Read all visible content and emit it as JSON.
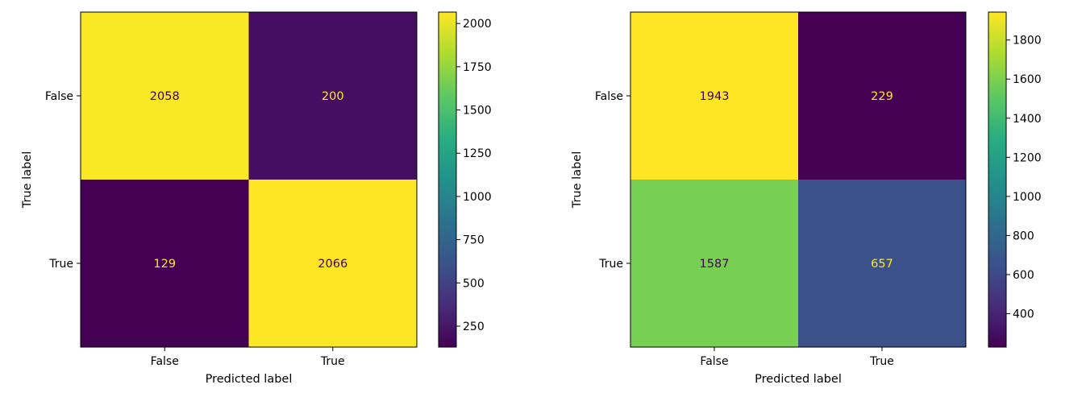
{
  "chart_data": [
    {
      "type": "heatmap",
      "title": "",
      "xlabel": "Predicted label",
      "ylabel": "True label",
      "x_categories": [
        "False",
        "True"
      ],
      "y_categories": [
        "False",
        "True"
      ],
      "values": [
        [
          2058,
          200
        ],
        [
          129,
          2066
        ]
      ],
      "colormap": "viridis",
      "colorbar": {
        "min": 129,
        "max": 2066,
        "ticks": [
          250,
          500,
          750,
          1000,
          1250,
          1500,
          1750,
          2000
        ]
      },
      "grid": false
    },
    {
      "type": "heatmap",
      "title": "",
      "xlabel": "Predicted label",
      "ylabel": "True label",
      "x_categories": [
        "False",
        "True"
      ],
      "y_categories": [
        "False",
        "True"
      ],
      "values": [
        [
          1943,
          229
        ],
        [
          1587,
          657
        ]
      ],
      "colormap": "viridis",
      "colorbar": {
        "min": 229,
        "max": 1943,
        "ticks": [
          400,
          600,
          800,
          1000,
          1200,
          1400,
          1600,
          1800
        ]
      },
      "grid": false
    }
  ]
}
